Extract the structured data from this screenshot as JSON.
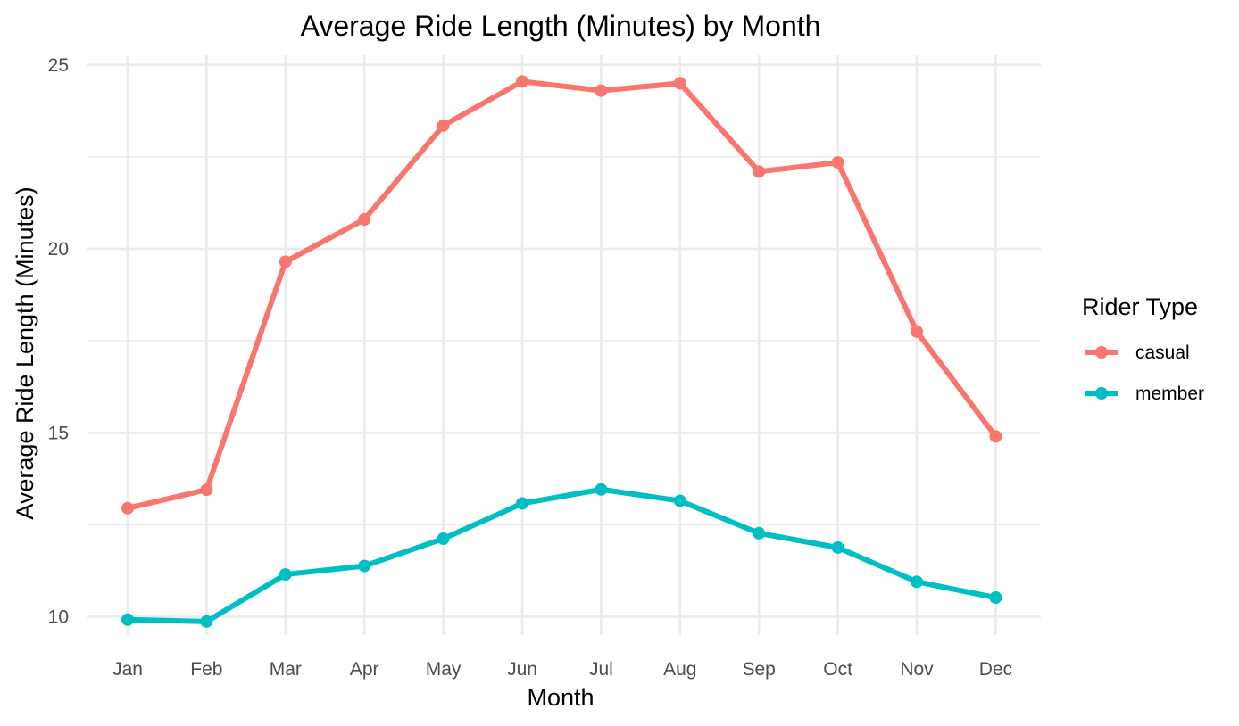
{
  "chart_data": {
    "type": "line",
    "title": "Average Ride Length (Minutes) by Month",
    "xlabel": "Month",
    "ylabel": "Average Ride Length (Minutes)",
    "categories": [
      "Jan",
      "Feb",
      "Mar",
      "Apr",
      "May",
      "Jun",
      "Jul",
      "Aug",
      "Sep",
      "Oct",
      "Nov",
      "Dec"
    ],
    "ylim": [
      9.5,
      25.3
    ],
    "yticks": [
      10,
      15,
      20,
      25
    ],
    "grid": true,
    "legend": {
      "title": "Rider Type",
      "placement": "right"
    },
    "series": [
      {
        "name": "casual",
        "color": "#F8766D",
        "values": [
          12.95,
          13.45,
          19.65,
          20.8,
          23.35,
          24.55,
          24.3,
          24.5,
          22.1,
          22.35,
          17.75,
          14.9
        ]
      },
      {
        "name": "member",
        "color": "#00BFC4",
        "values": [
          9.92,
          9.87,
          11.15,
          11.38,
          12.12,
          13.08,
          13.46,
          13.15,
          12.27,
          11.88,
          10.95,
          10.52
        ]
      }
    ]
  }
}
